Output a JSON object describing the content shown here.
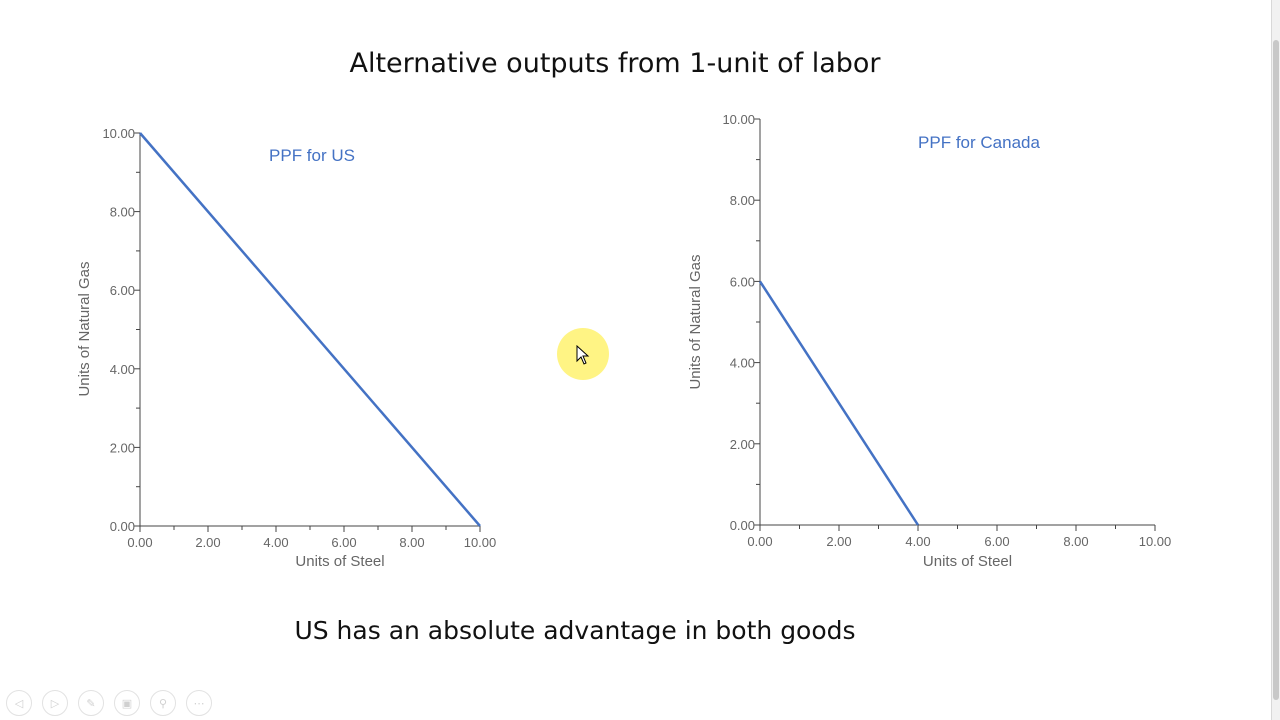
{
  "slide": {
    "title": "Alternative outputs from 1-unit of labor",
    "footer": "US has an absolute advantage in both goods"
  },
  "chart_data": [
    {
      "type": "line",
      "annotation": "PPF for US",
      "xlabel": "Units of Steel",
      "ylabel": "Units of Natural Gas",
      "xlim": [
        0,
        10
      ],
      "ylim": [
        0,
        10
      ],
      "x_ticks": [
        "0.00",
        "2.00",
        "4.00",
        "6.00",
        "8.00",
        "10.00"
      ],
      "y_ticks": [
        "0.00",
        "2.00",
        "4.00",
        "6.00",
        "8.00",
        "10.00"
      ],
      "series": [
        {
          "x": [
            0,
            10
          ],
          "y": [
            10,
            0
          ]
        }
      ],
      "color": "#4472c4"
    },
    {
      "type": "line",
      "annotation": "PPF for Canada",
      "xlabel": "Units of Steel",
      "ylabel": "Units of Natural Gas",
      "xlim": [
        0,
        10
      ],
      "ylim": [
        0,
        10
      ],
      "x_ticks": [
        "0.00",
        "2.00",
        "4.00",
        "6.00",
        "8.00",
        "10.00"
      ],
      "y_ticks": [
        "0.00",
        "2.00",
        "4.00",
        "6.00",
        "8.00",
        "10.00"
      ],
      "series": [
        {
          "x": [
            0,
            4
          ],
          "y": [
            6,
            0
          ]
        }
      ],
      "color": "#4472c4"
    }
  ],
  "controls": [
    {
      "icon": "previous-icon",
      "glyph": "◁"
    },
    {
      "icon": "next-icon",
      "glyph": "▷"
    },
    {
      "icon": "pen-icon",
      "glyph": "✎"
    },
    {
      "icon": "slides-icon",
      "glyph": "▣"
    },
    {
      "icon": "zoom-icon",
      "glyph": "⚲"
    },
    {
      "icon": "more-icon",
      "glyph": "⋯"
    }
  ]
}
